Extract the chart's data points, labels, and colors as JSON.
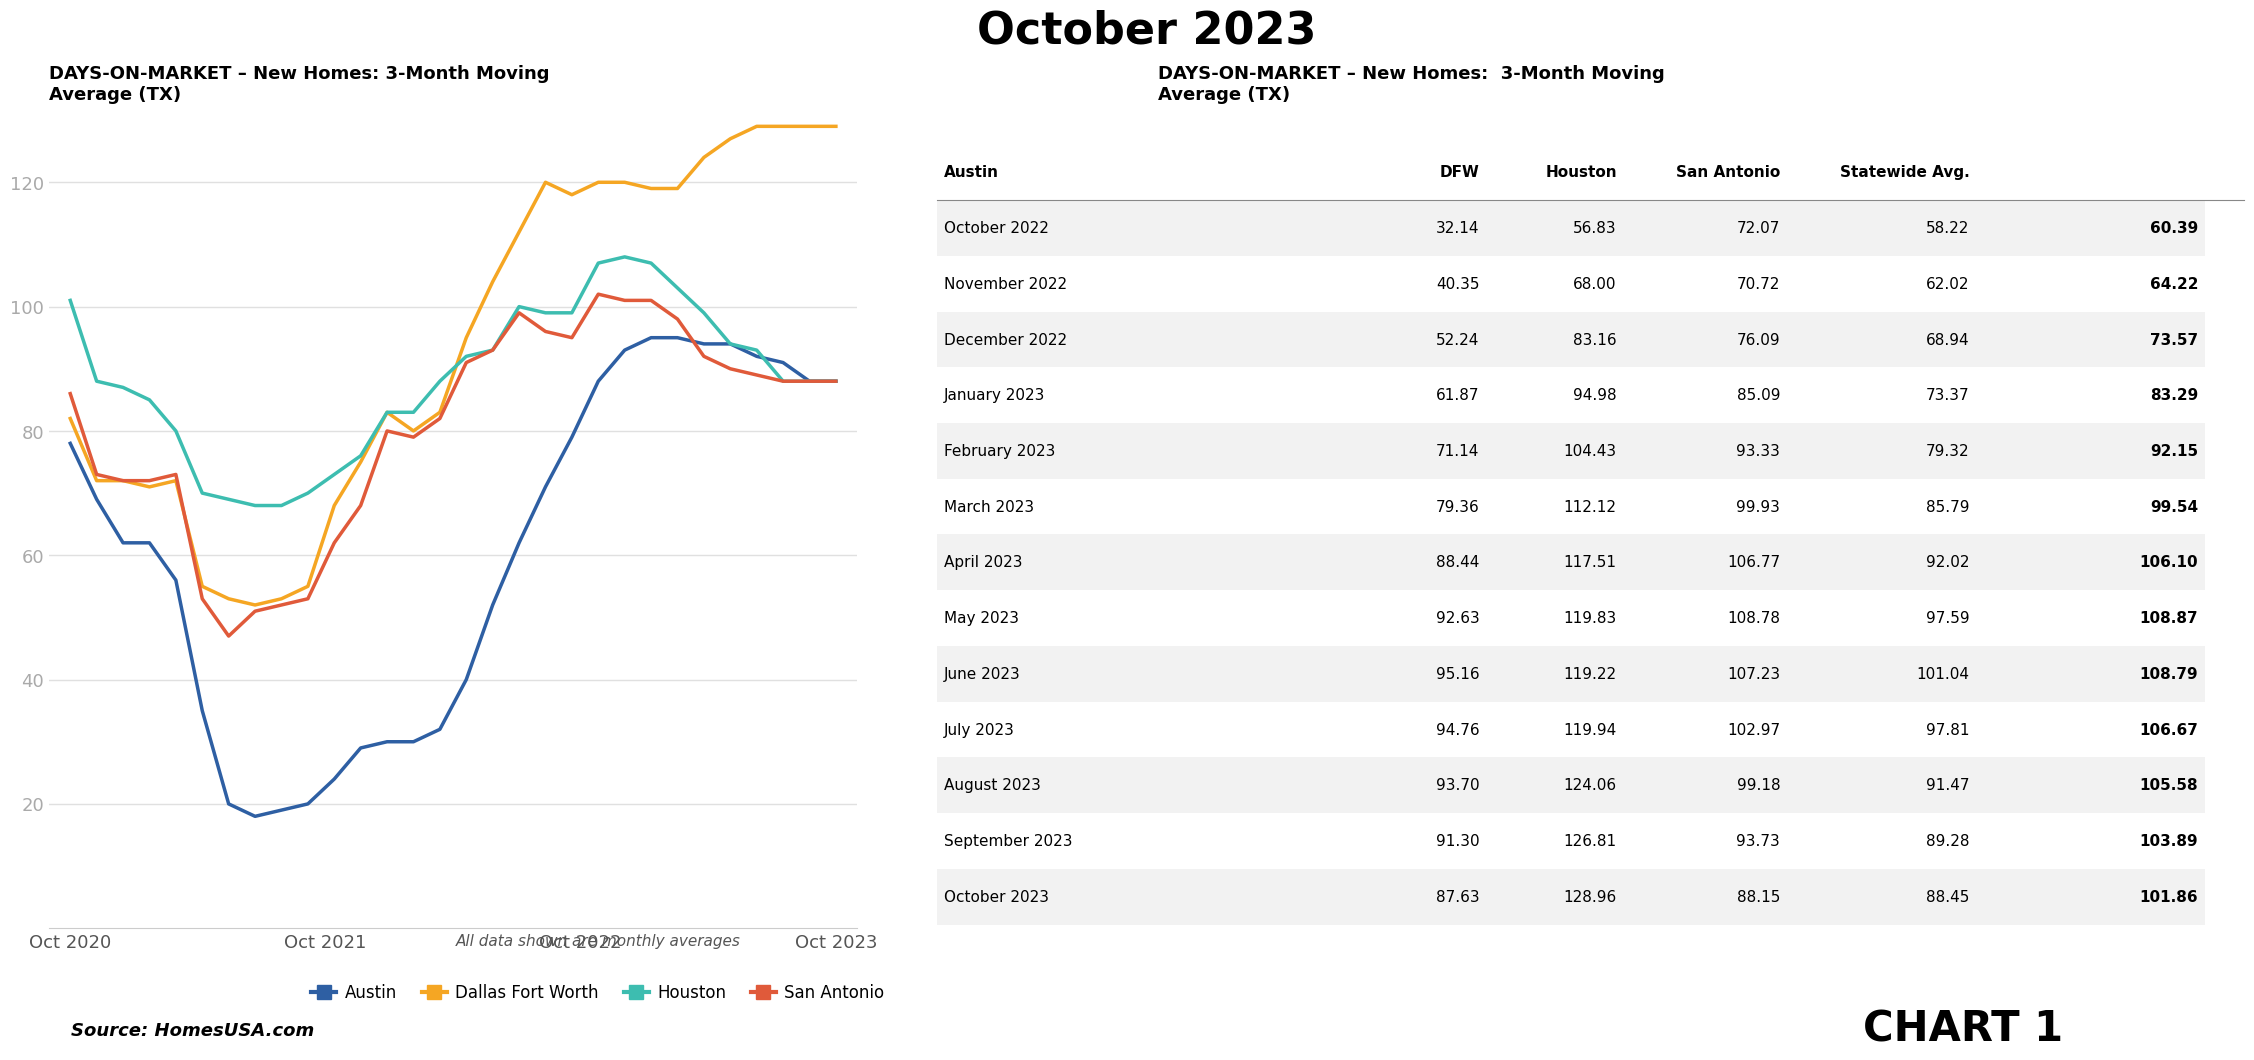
{
  "title": "October 2023",
  "chart_subtitle_left": "DAYS-ON-MARKET – New Homes: 3-Month Moving\nAverage (TX)",
  "chart_subtitle_right": "DAYS-ON-MARKET – New Homes:  3-Month Moving\nAverage (TX)",
  "source": "Source: HomesUSA.com",
  "chart1_label": "CHART 1",
  "note": "All data shown are monthly averages",
  "colors": {
    "Austin": "#2e5fa3",
    "Dallas Fort Worth": "#f5a623",
    "Houston": "#3dbdb0",
    "San Antonio": "#e05a3a"
  },
  "x_labels": [
    "Oct 2020",
    "Oct 2021",
    "Oct 2022",
    "Oct 2023"
  ],
  "series": {
    "Austin": [
      78,
      69,
      62,
      62,
      56,
      35,
      20,
      18,
      19,
      20,
      24,
      29,
      30,
      30,
      32,
      40,
      52,
      62,
      71,
      79,
      88,
      93,
      95,
      95,
      94,
      94,
      92,
      91,
      88,
      88
    ],
    "Dallas Fort Worth": [
      82,
      72,
      72,
      71,
      72,
      55,
      53,
      52,
      53,
      55,
      68,
      75,
      83,
      80,
      83,
      95,
      104,
      112,
      120,
      118,
      120,
      120,
      119,
      119,
      124,
      127,
      129,
      129,
      129,
      129
    ],
    "Houston": [
      101,
      88,
      87,
      85,
      80,
      70,
      69,
      68,
      68,
      70,
      73,
      76,
      83,
      83,
      88,
      92,
      93,
      100,
      99,
      99,
      107,
      108,
      107,
      103,
      99,
      94,
      93,
      88,
      88,
      88
    ],
    "San Antonio": [
      86,
      73,
      72,
      72,
      73,
      53,
      47,
      51,
      52,
      53,
      62,
      68,
      80,
      79,
      82,
      91,
      93,
      99,
      96,
      95,
      102,
      101,
      101,
      98,
      92,
      90,
      89,
      88,
      88,
      88
    ]
  },
  "table_rows": [
    [
      "October 2022",
      "32.14",
      "56.83",
      "72.07",
      "58.22",
      "60.39"
    ],
    [
      "November 2022",
      "40.35",
      "68.00",
      "70.72",
      "62.02",
      "64.22"
    ],
    [
      "December 2022",
      "52.24",
      "83.16",
      "76.09",
      "68.94",
      "73.57"
    ],
    [
      "January 2023",
      "61.87",
      "94.98",
      "85.09",
      "73.37",
      "83.29"
    ],
    [
      "February 2023",
      "71.14",
      "104.43",
      "93.33",
      "79.32",
      "92.15"
    ],
    [
      "March 2023",
      "79.36",
      "112.12",
      "99.93",
      "85.79",
      "99.54"
    ],
    [
      "April 2023",
      "88.44",
      "117.51",
      "106.77",
      "92.02",
      "106.10"
    ],
    [
      "May 2023",
      "92.63",
      "119.83",
      "108.78",
      "97.59",
      "108.87"
    ],
    [
      "June 2023",
      "95.16",
      "119.22",
      "107.23",
      "101.04",
      "108.79"
    ],
    [
      "July 2023",
      "94.76",
      "119.94",
      "102.97",
      "97.81",
      "106.67"
    ],
    [
      "August 2023",
      "93.70",
      "124.06",
      "99.18",
      "91.47",
      "105.58"
    ],
    [
      "September 2023",
      "91.30",
      "126.81",
      "93.73",
      "89.28",
      "103.89"
    ],
    [
      "October 2023",
      "87.63",
      "128.96",
      "88.15",
      "88.45",
      "101.86"
    ]
  ],
  "table_headers": [
    "",
    "Austin",
    "DFW",
    "Houston",
    "San Antonio",
    "Statewide Avg."
  ],
  "ylim": [
    0,
    130
  ],
  "yticks": [
    20,
    40,
    60,
    80,
    100,
    120
  ],
  "background_color": "#ffffff",
  "grid_color": "#e0e0e0"
}
